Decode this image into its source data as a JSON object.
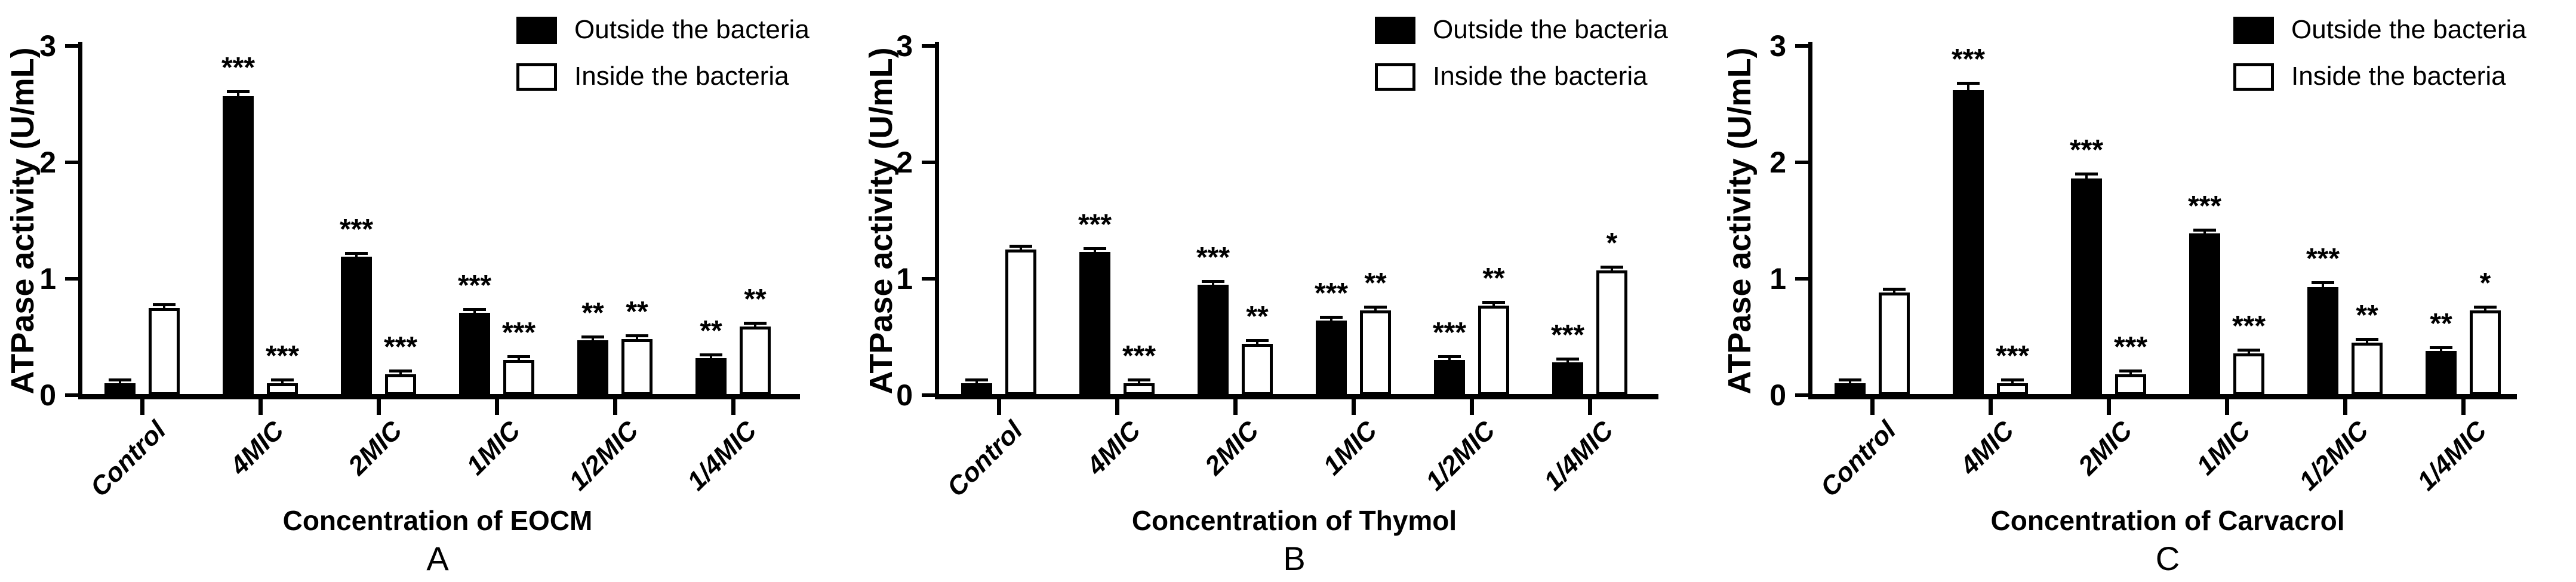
{
  "figure": {
    "background": "#ffffff",
    "bar_fill_outside": "#000000",
    "bar_fill_inside": "#ffffff"
  },
  "legend": {
    "items": [
      {
        "label": "Outside the bacteria",
        "fill": "#000000"
      },
      {
        "label": "Inside the bacteria",
        "fill": "#ffffff"
      }
    ]
  },
  "chart_data": [
    {
      "type": "bar",
      "panel_letter": "A",
      "title": "",
      "xlabel": "Concentration of EOCM",
      "ylabel": "ATPase activity (U/mL)",
      "ylim": [
        0,
        3
      ],
      "yticks": [
        "0",
        "1",
        "2",
        "3"
      ],
      "grid": false,
      "legend_position": "top-right",
      "categories": [
        "Control",
        "4MIC",
        "2MIC",
        "1MIC",
        "1/2MIC",
        "1/4MIC"
      ],
      "series": [
        {
          "name": "Outside the bacteria",
          "fill": "#000000",
          "values": [
            0.1,
            2.57,
            1.19,
            0.71,
            0.47,
            0.32
          ],
          "errors": [
            0.01,
            0.03,
            0.02,
            0.015,
            0.01,
            0.01
          ],
          "sig": [
            "",
            "***",
            "***",
            "***",
            "**",
            "**"
          ]
        },
        {
          "name": "Inside the bacteria",
          "fill": "#ffffff",
          "values": [
            0.75,
            0.1,
            0.18,
            0.3,
            0.48,
            0.59
          ],
          "errors": [
            0.015,
            0.01,
            0.015,
            0.01,
            0.01,
            0.01
          ],
          "sig": [
            "",
            "***",
            "***",
            "***",
            "**",
            "**"
          ]
        }
      ]
    },
    {
      "type": "bar",
      "panel_letter": "B",
      "title": "",
      "xlabel": "Concentration of Thymol",
      "ylabel": "ATPase activity (U/mL)",
      "ylim": [
        0,
        3
      ],
      "yticks": [
        "0",
        "1",
        "2",
        "3"
      ],
      "grid": false,
      "legend_position": "top-right",
      "categories": [
        "Control",
        "4MIC",
        "2MIC",
        "1MIC",
        "1/2MIC",
        "1/4MIC"
      ],
      "series": [
        {
          "name": "Outside the bacteria",
          "fill": "#000000",
          "values": [
            0.1,
            1.23,
            0.95,
            0.64,
            0.3,
            0.28
          ],
          "errors": [
            0.005,
            0.01,
            0.01,
            0.02,
            0.01,
            0.01
          ],
          "sig": [
            "",
            "***",
            "***",
            "***",
            "***",
            "***"
          ]
        },
        {
          "name": "Inside the bacteria",
          "fill": "#ffffff",
          "values": [
            1.25,
            0.1,
            0.44,
            0.73,
            0.77,
            1.07
          ],
          "errors": [
            0.02,
            0.005,
            0.01,
            0.015,
            0.015,
            0.01
          ],
          "sig": [
            "",
            "***",
            "**",
            "**",
            "**",
            "*"
          ]
        }
      ]
    },
    {
      "type": "bar",
      "panel_letter": "C",
      "title": "",
      "xlabel": "Concentration of Carvacrol",
      "ylabel": "ATPase activity (U/mL)",
      "ylim": [
        0,
        3
      ],
      "yticks": [
        "0",
        "1",
        "2",
        "3"
      ],
      "grid": false,
      "legend_position": "top-right",
      "categories": [
        "Control",
        "4MIC",
        "2MIC",
        "1MIC",
        "1/2MIC",
        "1/4MIC"
      ],
      "series": [
        {
          "name": "Outside the bacteria",
          "fill": "#000000",
          "values": [
            0.1,
            2.62,
            1.86,
            1.39,
            0.93,
            0.38
          ],
          "errors": [
            0.005,
            0.05,
            0.03,
            0.02,
            0.03,
            0.01
          ],
          "sig": [
            "",
            "***",
            "***",
            "***",
            "***",
            "**"
          ]
        },
        {
          "name": "Inside the bacteria",
          "fill": "#ffffff",
          "values": [
            0.88,
            0.1,
            0.18,
            0.36,
            0.45,
            0.73
          ],
          "errors": [
            0.01,
            0.005,
            0.01,
            0.01,
            0.02,
            0.01
          ],
          "sig": [
            "",
            "***",
            "***",
            "***",
            "**",
            "*"
          ]
        }
      ]
    }
  ]
}
